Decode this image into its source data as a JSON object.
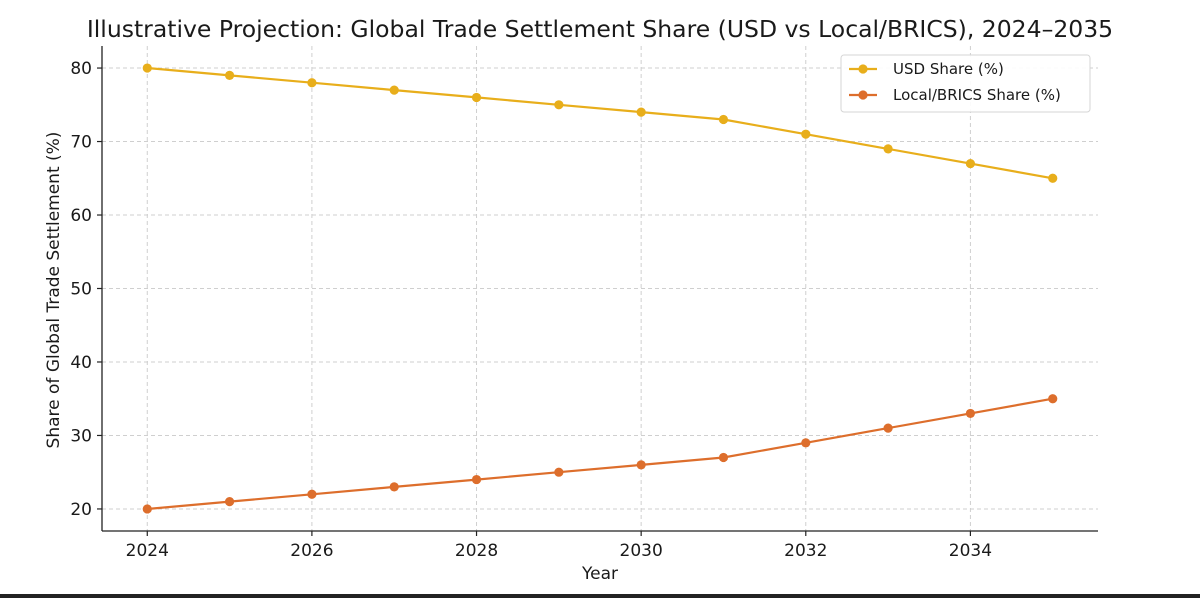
{
  "chart_data": {
    "type": "line",
    "title": "Illustrative Projection: Global Trade Settlement Share (USD vs Local/BRICS), 2024–2035",
    "xlabel": "Year",
    "ylabel": "Share of Global Trade Settlement (%)",
    "x": [
      2024,
      2025,
      2026,
      2027,
      2028,
      2029,
      2030,
      2031,
      2032,
      2033,
      2034,
      2035
    ],
    "xlim": [
      2023.45,
      2035.55
    ],
    "ylim": [
      17,
      83
    ],
    "xticks": [
      2024,
      2026,
      2028,
      2030,
      2032,
      2034
    ],
    "yticks": [
      20,
      30,
      40,
      50,
      60,
      70,
      80
    ],
    "grid": true,
    "legend_position": "top-right",
    "series": [
      {
        "name": "USD Share (%)",
        "color": "#E8AE1B",
        "values": [
          80,
          79,
          78,
          77,
          76,
          75,
          74,
          73,
          71,
          69,
          67,
          65
        ]
      },
      {
        "name": "Local/BRICS Share (%)",
        "color": "#DD6E2C",
        "values": [
          20,
          21,
          22,
          23,
          24,
          25,
          26,
          27,
          29,
          31,
          33,
          35
        ]
      }
    ]
  }
}
